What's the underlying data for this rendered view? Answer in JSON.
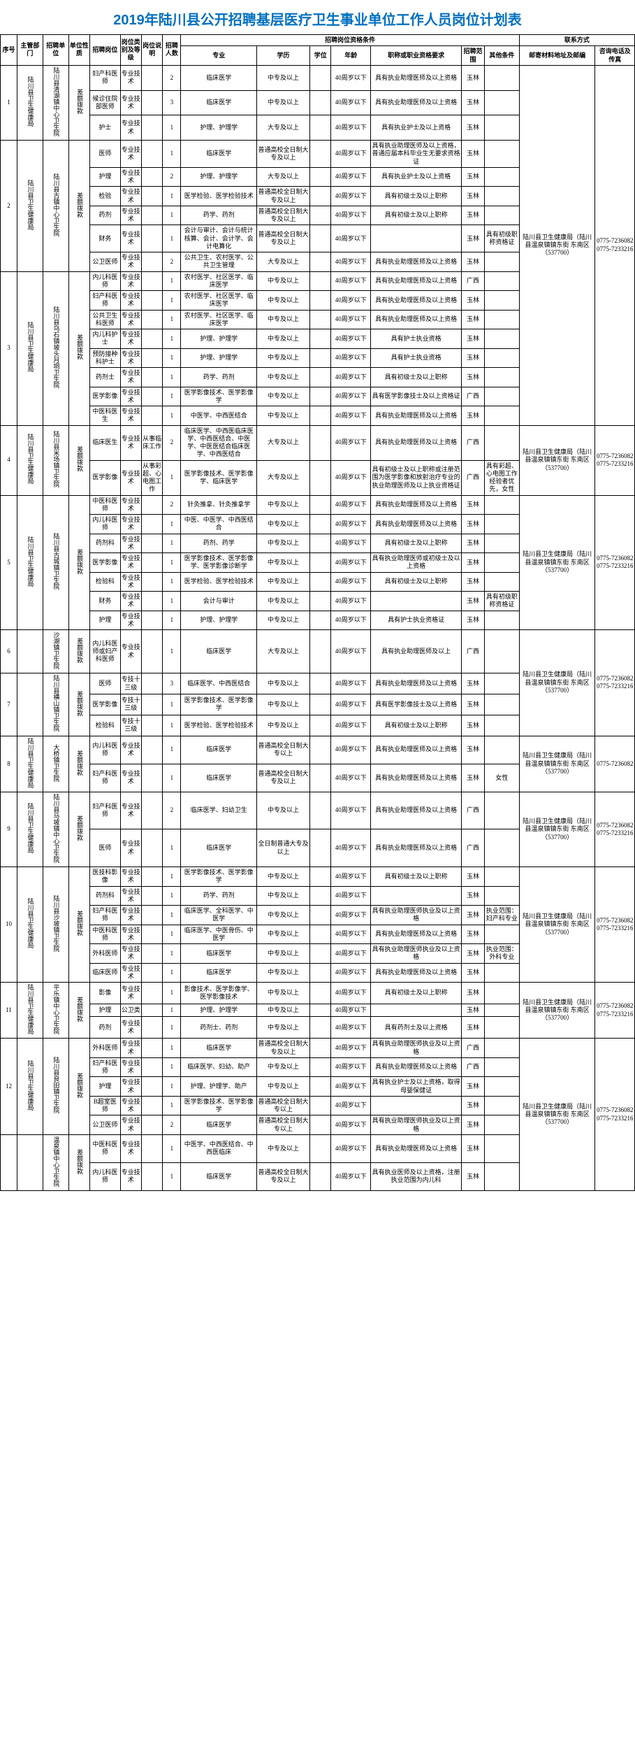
{
  "title": "2019年陆川县公开招聘基层医疗卫生事业单位工作人员岗位计划表",
  "colors": {
    "title": "#0070c0",
    "border": "#000000"
  },
  "headers": {
    "seq": "序号",
    "dept": "主管部门",
    "unit": "招聘单位",
    "nature": "单位性质",
    "post": "招聘岗位",
    "cat": "岗位类别及等级",
    "desc": "岗位说明",
    "num": "招聘人数",
    "qual_group": "招聘岗位资格条件",
    "major": "专业",
    "edu": "学历",
    "deg": "学位",
    "age": "年龄",
    "req": "职称或职业资格要求",
    "scope": "招聘范围",
    "other": "其他条件",
    "contact_group": "联系方式",
    "addr": "邮寄材料地址及邮编",
    "phone": "咨询电话及传真"
  },
  "common": {
    "nature": "差额拨款",
    "cat": "专业技术",
    "age40": "40周岁以下",
    "scope_yl": "玉林",
    "scope_gx": "广西",
    "addr": "陆川县卫生健康局（陆川县温泉镇镇东街 东南区（537700）",
    "phone": "0775-7236082 0775-7233216",
    "phone2": "0775-7236082"
  },
  "groups": [
    {
      "seq": "1",
      "dept": "陆川县卫生健康局",
      "unit": "陆川县清湖镇中心卫生院",
      "rows": [
        {
          "post": "妇产科医师",
          "num": "2",
          "major": "临床医学",
          "edu": "中专及以上",
          "req": "具有执业助理医师及以上资格",
          "scope": "玉林"
        },
        {
          "post": "候诊住院部医师",
          "num": "3",
          "major": "临床医学",
          "edu": "中专及以上",
          "req": "具有执业助理医师及以上资格",
          "scope": "玉林"
        },
        {
          "post": "护士",
          "num": "1",
          "major": "护理、护理学",
          "edu": "大专及以上",
          "req": "具有执业护士及以上资格",
          "scope": "玉林"
        }
      ]
    },
    {
      "seq": "2",
      "dept": "陆川县卫生健康局",
      "unit": "陆川县古镇中心卫生院",
      "rows": [
        {
          "post": "医师",
          "num": "1",
          "major": "临床医学",
          "edu": "普通高校全日制大专及以上",
          "req": "具有执业助理医师及以上资格，普通应届本科毕业生无要求资格证",
          "scope": "玉林"
        },
        {
          "post": "护理",
          "num": "2",
          "major": "护理、护理学",
          "edu": "大专及以上",
          "req": "具有执业护士及以上资格",
          "scope": "玉林"
        },
        {
          "post": "检验",
          "num": "1",
          "major": "医学检验、医学检验技术",
          "edu": "普通高校全日制大专及以上",
          "req": "具有初级士及以上职称",
          "scope": "玉林"
        },
        {
          "post": "药剂",
          "num": "1",
          "major": "药学、药剂",
          "edu": "普通高校全日制大专及以上",
          "req": "具有初级士及以上职称",
          "scope": "玉林"
        },
        {
          "post": "财务",
          "num": "1",
          "major": "会计与审计、会计与统计核算、会计、会计学、会计电算化",
          "edu": "普通高校全日制大专及以上",
          "req": "",
          "scope": "玉林",
          "other": "具有初级职称资格证"
        },
        {
          "post": "公卫医师",
          "num": "2",
          "major": "公共卫生、农村医学、公共卫生管理",
          "edu": "大专及以上",
          "req": "具有执业助理医师及以上资格",
          "scope": "玉林"
        }
      ]
    },
    {
      "seq": "3",
      "dept": "陆川县卫生健康局",
      "unit": "陆川县乌石镇坡头月垌卫生院",
      "rows": [
        {
          "post": "内儿科医师",
          "num": "1",
          "major": "农村医学、社区医学、临床医学",
          "edu": "中专及以上",
          "req": "具有执业助理医师及以上资格",
          "scope": "广西"
        },
        {
          "post": "妇产科医师",
          "num": "1",
          "major": "农村医学、社区医学、临床医学",
          "edu": "中专及以上",
          "req": "具有执业助理医师及以上资格",
          "scope": "玉林"
        },
        {
          "post": "公共卫生科医师",
          "num": "1",
          "major": "农村医学、社区医学、临床医学",
          "edu": "中专及以上",
          "req": "具有执业助理医师及以上资格",
          "scope": "玉林"
        },
        {
          "post": "内儿科护士",
          "num": "1",
          "major": "护理、护理学",
          "edu": "中专及以上",
          "req": "具有护士执业资格",
          "scope": "玉林"
        },
        {
          "post": "预防接种科护士",
          "num": "1",
          "major": "护理、护理学",
          "edu": "中专及以上",
          "req": "具有护士执业资格",
          "scope": "玉林"
        },
        {
          "post": "药剂士",
          "num": "1",
          "major": "药学、药剂",
          "edu": "中专及以上",
          "req": "具有初级士及以上职称",
          "scope": "玉林"
        },
        {
          "post": "医学影像",
          "num": "1",
          "major": "医学影像技术、医学影像学",
          "edu": "中专及以上",
          "req": "具有医学影像技士及以上资格证",
          "scope": "广西"
        },
        {
          "post": "中医科医生",
          "num": "1",
          "major": "中医学、中西医结合",
          "edu": "中专及以上",
          "req": "具有执业助理医师及以上资格",
          "scope": "玉林"
        }
      ]
    },
    {
      "seq": "4",
      "dept": "陆川县卫生健康局",
      "unit": "陆川县米场镇卫生院",
      "rows": [
        {
          "post": "临床医生",
          "desc": "从事临床工作",
          "num": "2",
          "major": "临床医学、中西医临床医学、中西医结合、中医学、中医医结合临床医学、中西医结合",
          "edu": "大专及以上",
          "req": "具有执业助理医师及以上资格",
          "scope": "广西"
        },
        {
          "post": "医学影像",
          "desc": "从事彩超、心电图工作",
          "num": "1",
          "major": "医学影像技术、医学影像学、临床医学",
          "edu": "大专及以上",
          "req": "具有初级士及以上职称或注册范围为医学影像和放射治疗专业的执业助理医师及以上执业资格证",
          "scope": "广西",
          "other": "具有彩超、心电图工作经验者优先，女性"
        }
      ]
    },
    {
      "seq": "5",
      "dept": "陆川县卫生健康局",
      "unit": "陆川县古城镇卫生院",
      "rows": [
        {
          "post": "中医科医师",
          "num": "2",
          "major": "针灸推拿、针灸推拿学",
          "edu": "中专及以上",
          "req": "具有执业助理医师及以上资格",
          "scope": "玉林"
        },
        {
          "post": "内儿科医师",
          "num": "1",
          "major": "中医、中医学、中西医结合",
          "edu": "中专及以上",
          "req": "具有执业助理医师及以上资格",
          "scope": "玉林"
        },
        {
          "post": "药剂科",
          "num": "1",
          "major": "药剂、药学",
          "edu": "中专及以上",
          "req": "具有初级士及以上职称",
          "scope": "玉林"
        },
        {
          "post": "医学影像",
          "num": "1",
          "major": "医学影像技术、医学影像学、医学影像诊断学",
          "edu": "中专及以上",
          "req": "具有执业助理医师或初级士及以上资格",
          "scope": "玉林"
        },
        {
          "post": "检验科",
          "num": "1",
          "major": "医学检验、医学检验技术",
          "edu": "中专及以上",
          "req": "具有初级士及以上职称",
          "scope": "玉林"
        },
        {
          "post": "财务",
          "num": "1",
          "major": "会计与审计",
          "edu": "中专及以上",
          "req": "",
          "scope": "玉林",
          "other": "具有初级职称资格证"
        },
        {
          "post": "护理",
          "num": "1",
          "major": "护理、护理学",
          "edu": "中专及以上",
          "req": "具有护士执业资格证",
          "scope": "玉林"
        }
      ]
    },
    {
      "seq": "6",
      "dept": "",
      "unit": "沙湖镇卫生院",
      "rows": [
        {
          "post": "内儿科医师或妇产科医师",
          "num": "1",
          "major": "临床医学",
          "edu": "大专及以上",
          "req": "具有执业助理医师及以上",
          "scope": "广西"
        }
      ]
    },
    {
      "seq": "7",
      "dept": "",
      "unit": "陆川县横山镇卫生院",
      "rows": [
        {
          "post": "医师",
          "cat": "专技十三级",
          "num": "3",
          "major": "临床医学、中西医结合",
          "edu": "中专及以上",
          "req": "具有执业助理医师及以上资格",
          "scope": "玉林"
        },
        {
          "post": "医学影像",
          "cat": "专技十三级",
          "num": "1",
          "major": "医学影像技术、医学影像学",
          "edu": "中专及以上",
          "req": "具有医学影像技士及以上资格",
          "scope": "玉林"
        },
        {
          "post": "检验科",
          "cat": "专技十三级",
          "num": "1",
          "major": "医学检验、医学检验技术",
          "edu": "中专及以上",
          "req": "具有初级士及以上职称",
          "scope": "玉林"
        }
      ]
    },
    {
      "seq": "8",
      "dept": "陆川县卫生健康局",
      "unit": "大桥镇卫生院",
      "rows": [
        {
          "post": "内儿科医师",
          "num": "1",
          "major": "临床医学",
          "edu": "普通高校全日制大专以上",
          "req": "具有执业助理医师及以上资格",
          "scope": "玉林"
        },
        {
          "post": "妇产科医师",
          "num": "1",
          "major": "临床医学",
          "edu": "普通高校全日制大专及以上",
          "req": "具有执业助理医师及以上资格",
          "scope": "玉林",
          "other": "女性"
        }
      ],
      "phone": "0775-7236082"
    },
    {
      "seq": "9",
      "dept": "陆川县卫生健康局",
      "unit": "陆川县马坡镇中心卫生院",
      "rows": [
        {
          "post": "妇产科医师",
          "num": "2",
          "major": "临床医学、妇幼卫生",
          "edu": "中专及以上",
          "req": "具有执业助理医师及以上资格",
          "scope": "广西"
        },
        {
          "post": "医师",
          "num": "1",
          "major": "临床医学",
          "edu": "全日制普通大专及以上",
          "req": "具有执业助理医师及以上资格",
          "scope": "广西"
        }
      ]
    },
    {
      "seq": "10",
      "dept": "陆川县卫生健康局",
      "unit": "陆川县沙坡镇卫生院",
      "rows": [
        {
          "post": "医技科影像",
          "num": "1",
          "major": "医学影像技术、医学影像学",
          "edu": "中专及以上",
          "req": "具有初级士及以上职称",
          "scope": "玉林"
        },
        {
          "post": "药剂科",
          "num": "1",
          "major": "药学、药剂",
          "edu": "中专及以上",
          "req": "",
          "scope": "玉林"
        },
        {
          "post": "妇产科医师",
          "num": "1",
          "major": "临床医学、全科医学、中医学",
          "edu": "中专及以上",
          "req": "具有执业助理医师执业及以上资格",
          "scope": "玉林",
          "other": "执业范围：妇产科专业"
        },
        {
          "post": "中医科医师",
          "num": "1",
          "major": "临床医学、中医骨伤、中医学",
          "edu": "中专及以上",
          "req": "具有执业助理医师及以上资格",
          "scope": "玉林"
        },
        {
          "post": "外科医师",
          "num": "1",
          "major": "临床医学",
          "edu": "中专及以上",
          "req": "具有执业助理医师执业及以上资格",
          "scope": "玉林",
          "other": "执业范围：外科专业"
        },
        {
          "post": "临床医师",
          "num": "1",
          "major": "临床医学",
          "edu": "中专及以上",
          "req": "具有执业助理医师及以上资格",
          "scope": "玉林"
        }
      ]
    },
    {
      "seq": "11",
      "dept": "陆川县卫生健康局",
      "unit": "平乐镇中心卫生院",
      "rows": [
        {
          "post": "影像",
          "num": "1",
          "major": "影像技术、医学影像学、医学影像技术",
          "edu": "中专及以上",
          "req": "具有初级士及以上职称",
          "scope": "玉林"
        },
        {
          "post": "护理",
          "cat": "公卫类",
          "num": "1",
          "major": "护理、护理学",
          "edu": "中专及以上",
          "req": "",
          "scope": "玉林"
        },
        {
          "post": "药剂",
          "num": "1",
          "major": "药剂士、药剂",
          "edu": "中专及以上",
          "req": "具有药剂士及以上资格",
          "scope": "玉林"
        }
      ]
    },
    {
      "seq": "12",
      "dept": "陆川县卫生健康局",
      "unit": "陆川县良田镇卫生院",
      "rows": [
        {
          "post": "外科医师",
          "num": "1",
          "major": "临床医学",
          "edu": "普通高校全日制大专及以上",
          "req": "具有执业助理医师执业及以上资格",
          "scope": "广西"
        },
        {
          "post": "妇产科医师",
          "num": "1",
          "major": "临床医学、妇幼、助产",
          "edu": "中专及以上",
          "req": "具有执业助理医师及以上资格",
          "scope": "广西"
        },
        {
          "post": "护理",
          "num": "1",
          "major": "护理、护理学、助产",
          "edu": "中专及以上",
          "req": "具有执业护士及以上资格，取得母婴保健证",
          "scope": "玉林"
        },
        {
          "post": "B超室医师",
          "num": "1",
          "major": "医学影像技术、医学影像学",
          "edu": "普通高校全日制大专以上",
          "req": "",
          "scope": "玉林"
        },
        {
          "post": "公卫医师",
          "num": "2",
          "major": "临床医学",
          "edu": "普通高校全日制大专以上",
          "req": "具有执业助理医师执业及以上资格",
          "scope": "玉林"
        }
      ]
    },
    {
      "seq": "",
      "dept": "",
      "unit": "温泉镇中心卫生院",
      "rows": [
        {
          "post": "中医科医师",
          "num": "1",
          "major": "中医学、中西医结合、中西医临床",
          "edu": "中专及以上",
          "req": "具有执业助理医师及以上资格",
          "scope": "玉林"
        },
        {
          "post": "内儿科医师",
          "num": "1",
          "major": "临床医学",
          "edu": "普通高校全日制大专及以上",
          "req": "具有执业医师及以上资格，注册执业范围为内儿科",
          "scope": "玉林"
        }
      ]
    }
  ]
}
